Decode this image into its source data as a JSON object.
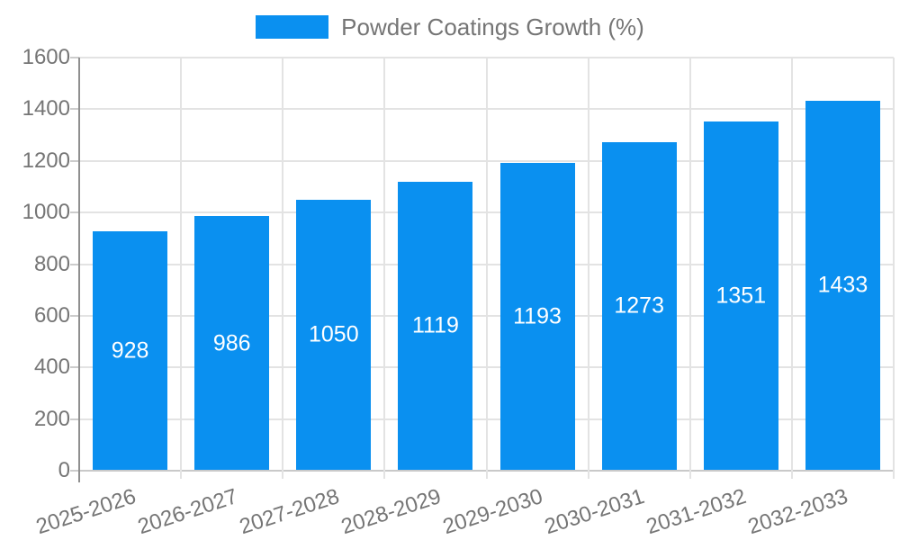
{
  "legend": {
    "label": "Powder Coatings Growth (%)"
  },
  "chart_data": {
    "type": "bar",
    "title": "",
    "xlabel": "",
    "ylabel": "",
    "categories": [
      "2025-2026",
      "2026-2027",
      "2027-2028",
      "2028-2029",
      "2029-2030",
      "2030-2031",
      "2031-2032",
      "2032-2033"
    ],
    "series": [
      {
        "name": "Powder Coatings Growth (%)",
        "values": [
          928,
          986,
          1050,
          1119,
          1193,
          1273,
          1351,
          1433
        ]
      }
    ],
    "value_labels_shown": true,
    "ylim": [
      0,
      1600
    ],
    "yticks": [
      0,
      200,
      400,
      600,
      800,
      1000,
      1200,
      1400,
      1600
    ],
    "grid": true,
    "legend_position": "top-center",
    "x_label_rotation_deg": -18,
    "colors": {
      "bar": "#0a90f0",
      "value_label_text": "#ffffff",
      "axis_text": "#757575",
      "legend_text": "#757575",
      "gridline": "#e3e3e3",
      "baseline": "#c9c9c9",
      "axis_line": "#8f8f8f",
      "tick": "#cccccc",
      "background": "#ffffff"
    }
  }
}
